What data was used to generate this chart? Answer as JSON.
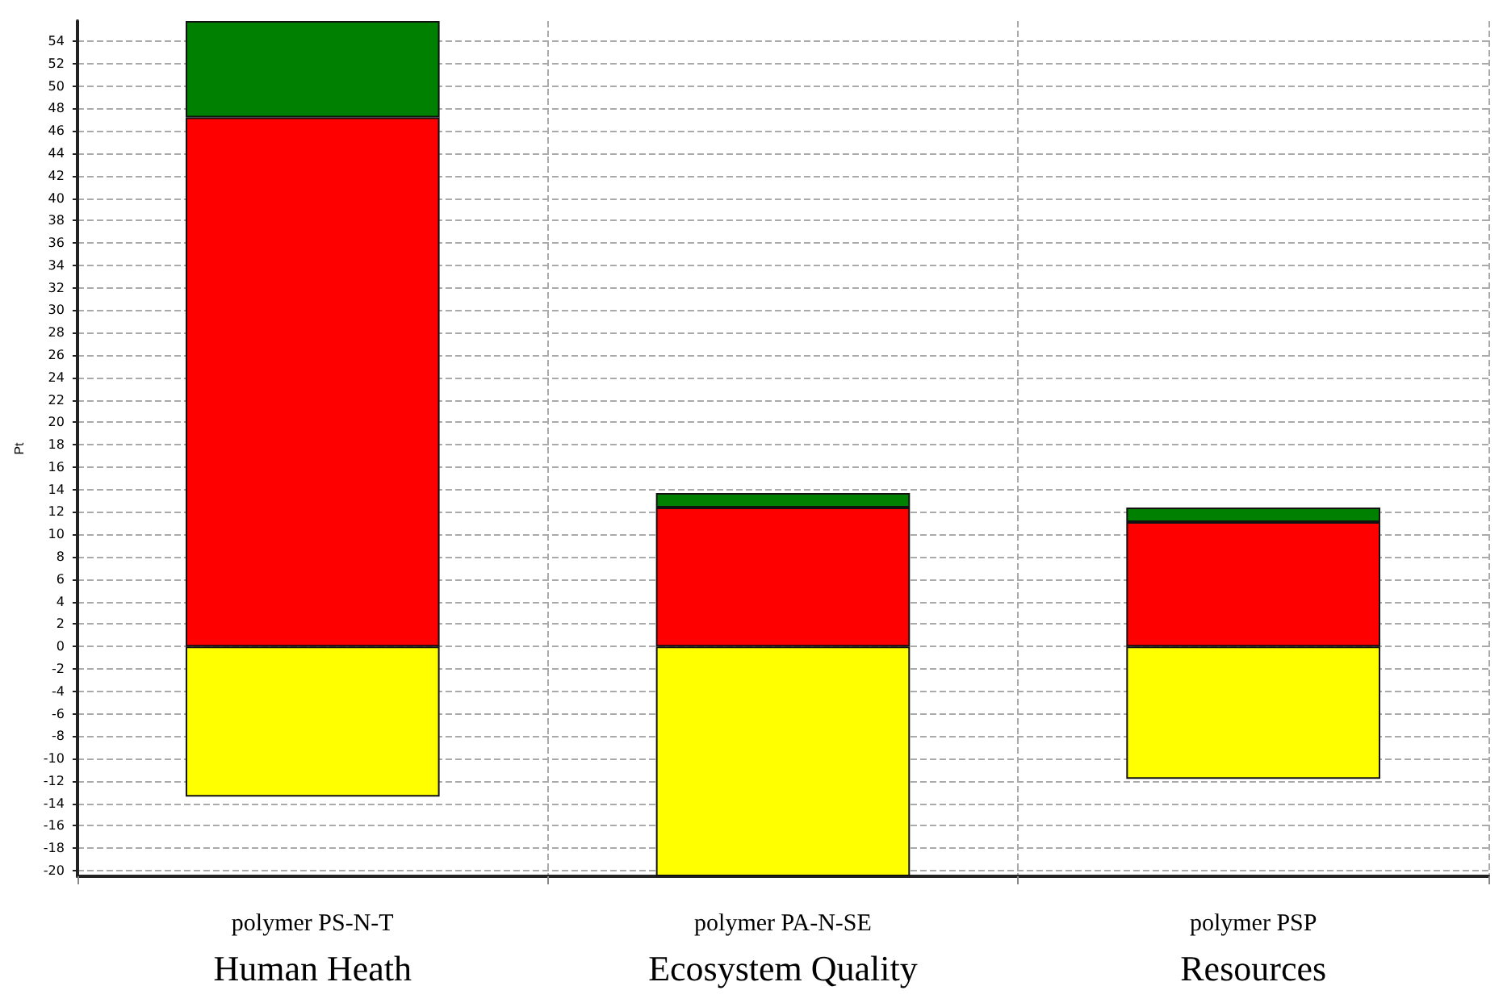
{
  "chart_data": {
    "type": "bar",
    "stacked": true,
    "ylabel": "Pt",
    "categories": [
      "polymer PS-N-T",
      "polymer PA-N-SE",
      "polymer PSP"
    ],
    "series": [
      {
        "color": "#ffff00",
        "values": [
          -13.4,
          -20.5,
          -11.8
        ]
      },
      {
        "color": "#ff0000",
        "values": [
          47.2,
          12.4,
          11.1
        ]
      },
      {
        "color": "#008000",
        "values": [
          8.6,
          1.3,
          1.3
        ]
      }
    ],
    "ylim": [
      -20.5,
      55.8
    ],
    "yticks": [
      -20,
      -18,
      -16,
      -14,
      -12,
      -10,
      -8,
      -6,
      -4,
      -2,
      0,
      2,
      4,
      6,
      8,
      10,
      12,
      14,
      16,
      18,
      20,
      22,
      24,
      26,
      28,
      30,
      32,
      34,
      36,
      38,
      40,
      42,
      44,
      46,
      48,
      50,
      52,
      54
    ],
    "grid": true,
    "annotations": [
      "Human Heath",
      "Ecosystem Quality",
      "Resources"
    ]
  }
}
